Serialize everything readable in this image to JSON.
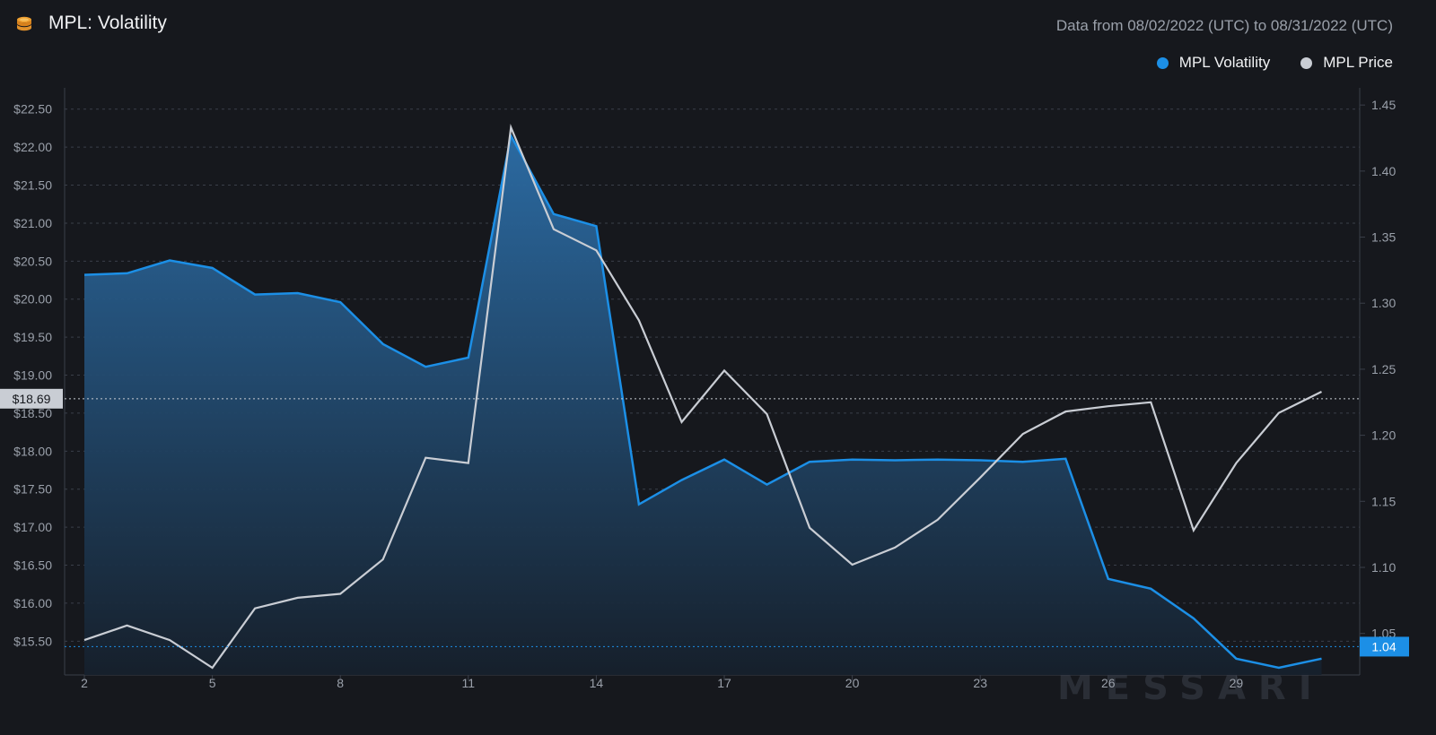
{
  "header": {
    "title": "MPL: Volatility",
    "range": "Data from 08/02/2022 (UTC) to 08/31/2022 (UTC)",
    "icon": "coins-icon"
  },
  "legend": [
    {
      "label": "MPL Volatility",
      "color": "#1c8fe6"
    },
    {
      "label": "MPL Price",
      "color": "#c9cdd4"
    }
  ],
  "watermark": "MESSARI",
  "crosshair": {
    "left_label": "$18.69",
    "right_label": "1.04"
  },
  "chart_data": {
    "type": "line",
    "x": [
      2,
      3,
      4,
      5,
      6,
      7,
      8,
      9,
      10,
      11,
      12,
      13,
      14,
      15,
      16,
      17,
      18,
      19,
      20,
      21,
      22,
      23,
      24,
      25,
      26,
      27,
      28,
      29,
      30,
      31
    ],
    "x_ticks": [
      "2",
      "5",
      "8",
      "11",
      "14",
      "17",
      "20",
      "23",
      "26",
      "29"
    ],
    "y_left_ticks": [
      "$15.50",
      "$16.00",
      "$16.50",
      "$17.00",
      "$17.50",
      "$18.00",
      "$18.50",
      "$19.00",
      "$19.50",
      "$20.00",
      "$20.50",
      "$21.00",
      "$21.50",
      "$22.00",
      "$22.50"
    ],
    "y_right_ticks": [
      "1.05",
      "1.10",
      "1.15",
      "1.20",
      "1.25",
      "1.30",
      "1.35",
      "1.40",
      "1.45"
    ],
    "ylim_left": [
      15.15,
      22.78
    ],
    "ylim_right": [
      1.024,
      1.463
    ],
    "series": [
      {
        "name": "MPL Volatility",
        "axis": "left",
        "type": "area",
        "color": "#1c8fe6",
        "values": [
          20.32,
          20.34,
          20.51,
          20.41,
          20.06,
          20.08,
          19.96,
          19.41,
          19.11,
          19.23,
          22.15,
          21.12,
          20.96,
          17.3,
          17.62,
          17.89,
          17.56,
          17.86,
          17.89,
          17.88,
          17.89,
          17.88,
          17.86,
          17.9,
          16.32,
          16.19,
          15.8,
          15.27,
          15.15,
          15.27
        ]
      },
      {
        "name": "MPL Price",
        "axis": "right",
        "type": "line",
        "color": "#c9cdd4",
        "values": [
          1.045,
          1.056,
          1.045,
          1.024,
          1.069,
          1.077,
          1.08,
          1.106,
          1.183,
          1.179,
          1.433,
          1.356,
          1.34,
          1.287,
          1.21,
          1.249,
          1.216,
          1.13,
          1.102,
          1.115,
          1.136,
          1.168,
          1.201,
          1.218,
          1.222,
          1.225,
          1.128,
          1.179,
          1.217,
          1.233
        ]
      }
    ]
  }
}
